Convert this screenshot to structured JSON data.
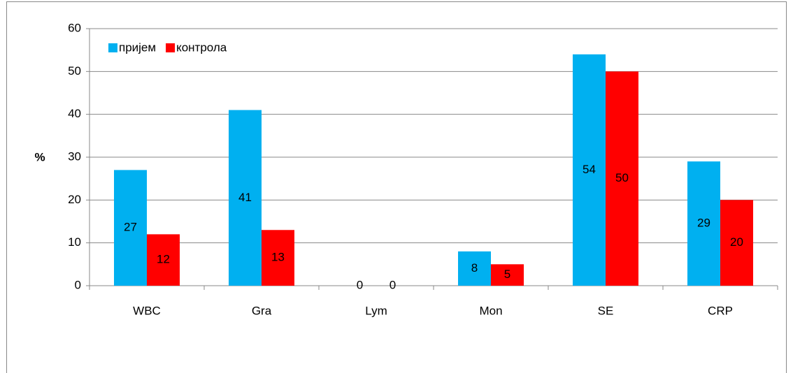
{
  "chart_data": {
    "type": "bar",
    "y_label": "%",
    "categories": [
      "WBC",
      "Gra",
      "Lym",
      "Mon",
      "SE",
      "CRP"
    ],
    "series": [
      {
        "name": "пријем",
        "color": "#00b0f0",
        "values": [
          27,
          41,
          0,
          8,
          54,
          29
        ]
      },
      {
        "name": "контрола",
        "color": "#ff0000",
        "values": [
          12,
          13,
          0,
          5,
          50,
          20
        ]
      }
    ],
    "ylim": [
      0,
      60
    ],
    "yticks": [
      0,
      10,
      20,
      30,
      40,
      50,
      60
    ],
    "grid": true,
    "legend": "top-left"
  }
}
